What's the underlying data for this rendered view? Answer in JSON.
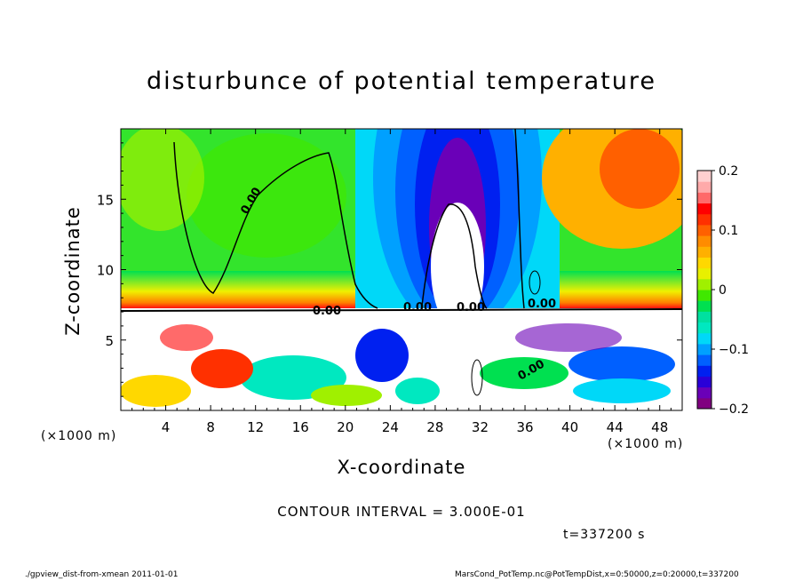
{
  "chart_data": {
    "type": "heatmap",
    "title": "disturbunce of potential temperature",
    "xlabel": "X-coordinate",
    "ylabel": "Z-coordinate",
    "x_unit": "(×1000 m)",
    "xlim": [
      0,
      50
    ],
    "ylim": [
      0,
      20
    ],
    "x_ticks": [
      "4",
      "8",
      "12",
      "16",
      "20",
      "24",
      "28",
      "32",
      "36",
      "40",
      "44",
      "48"
    ],
    "y_ticks": [
      "5",
      "10",
      "15"
    ],
    "colorbar": {
      "range": [
        -0.2,
        0.2
      ],
      "ticks": [
        "0.2",
        "0.1",
        "0",
        "−0.1",
        "−0.2"
      ],
      "colors": [
        "#800080",
        "#6a00b8",
        "#2a00d8",
        "#0020f0",
        "#0060ff",
        "#00a0ff",
        "#00d8f8",
        "#00e8c0",
        "#00e0a0",
        "#00e050",
        "#40e800",
        "#a0f000",
        "#e8f000",
        "#ffd800",
        "#ffb000",
        "#ff8c00",
        "#ff6000",
        "#ff3000",
        "#ff0000",
        "#ff6a6a",
        "#ffaaaa",
        "#ffd0d0"
      ]
    },
    "contour_labels": [
      "0.00",
      "0.00",
      "0.00",
      "0.00",
      "0.00",
      "0.00"
    ],
    "contour_interval": "CONTOUR INTERVAL = 3.000E-01",
    "time": "t=337200 s",
    "footer_left": "./gpview_dist-from-xmean 2011-01-01",
    "footer_right": "MarsCond_PotTemp.nc@PotTempDist,x=0:50000,z=0:20000,t=337200"
  }
}
